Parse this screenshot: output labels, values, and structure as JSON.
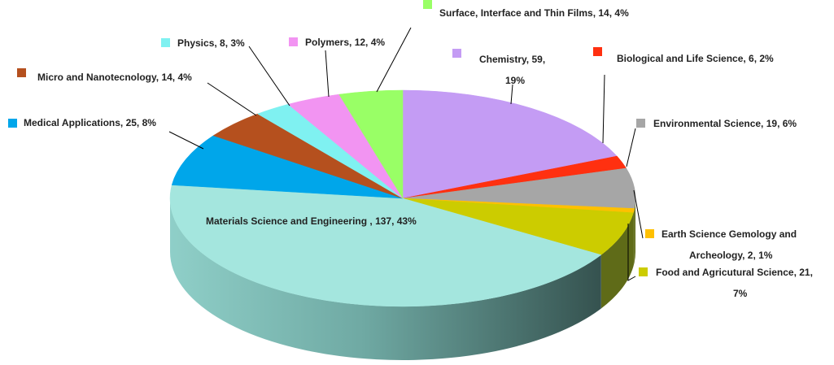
{
  "chart_data": {
    "type": "pie",
    "style": "3d",
    "series": [
      {
        "categories": [
          "Chemistry",
          "Biological and Life Science",
          "Environmental Science",
          "Earth Science Gemology and Archeology",
          "Food and Agricutural Science",
          "Materials Science and Engineering",
          "Medical Applications",
          "Micro and Nanotecnology",
          "Physics",
          "Polymers",
          "Surface, Interface and Thin Films"
        ],
        "values": [
          59,
          6,
          19,
          2,
          21,
          137,
          25,
          14,
          8,
          12,
          14
        ],
        "percents": [
          19,
          2,
          6,
          1,
          7,
          43,
          8,
          4,
          3,
          4,
          4
        ],
        "colors": [
          "#c49cf4",
          "#ff3010",
          "#a6a6a6",
          "#ffc000",
          "#cccc00",
          "#a4e6de",
          "#00a6ea",
          "#b5501e",
          "#7ff1f1",
          "#f294f2",
          "#99ff66"
        ]
      }
    ],
    "data_labels": [
      {
        "line1": "Chemistry, 59,",
        "line2": "19%"
      },
      {
        "line1": "Biological and Life Science, 6, 2%",
        "line2": ""
      },
      {
        "line1": "Environmental Science, 19, 6%",
        "line2": ""
      },
      {
        "line1": "Earth Science Gemology and",
        "line2": "Archeology, 2, 1%"
      },
      {
        "line1": "Food and Agricutural Science, 21,",
        "line2": "7%"
      },
      {
        "line1": "Materials Science and Engineering , 137, 43%",
        "line2": ""
      },
      {
        "line1": "Medical Applications, 25, 8%",
        "line2": ""
      },
      {
        "line1": "Micro and Nanotecnology, 14, 4%",
        "line2": ""
      },
      {
        "line1": "Physics, 8, 3%",
        "line2": ""
      },
      {
        "line1": "Polymers, 12, 4%",
        "line2": ""
      },
      {
        "line1": "Surface, Interface and Thin Films, 14, 4%",
        "line2": ""
      }
    ],
    "title": "",
    "legend": "none"
  }
}
